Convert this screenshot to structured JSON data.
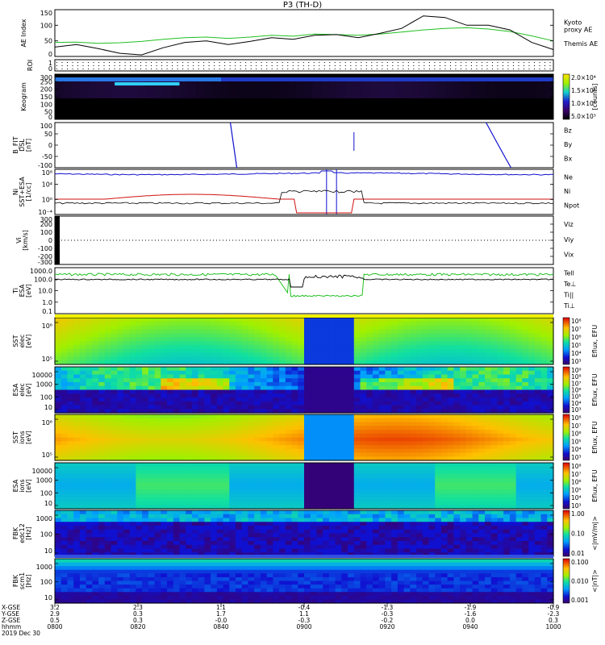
{
  "title": "P3 (TH-D)",
  "colors": {
    "frame": "#000000",
    "red": "#d01010",
    "green": "#20c020",
    "blue": "#1010d0"
  },
  "chart_data": [
    {
      "type": "line",
      "ylabel": "AE Index",
      "ylim": [
        0,
        150
      ],
      "yticks": [
        "150",
        "100",
        "50",
        "0"
      ],
      "legend": [
        {
          "label": "Kyoto\nproxy AE",
          "color": "#20c020"
        },
        {
          "label": "Themis AE",
          "color": "#000000"
        }
      ],
      "series": [
        {
          "name": "Kyoto proxy AE",
          "color": "#20c020",
          "values": [
            45,
            46,
            42,
            44,
            48,
            55,
            60,
            62,
            58,
            62,
            68,
            65,
            72,
            70,
            68,
            72,
            78,
            85,
            90,
            92,
            88,
            80,
            66,
            50
          ]
        },
        {
          "name": "Themis AE",
          "color": "#000000",
          "values": [
            30,
            38,
            25,
            10,
            5,
            28,
            45,
            50,
            38,
            48,
            60,
            55,
            68,
            70,
            60,
            74,
            90,
            130,
            125,
            100,
            100,
            85,
            45,
            22
          ]
        }
      ]
    },
    {
      "type": "heatmap",
      "ylabel": "ROI",
      "ylim": [
        0,
        1
      ],
      "yticks": [
        "1",
        "0"
      ]
    },
    {
      "type": "heatmap",
      "ylabel": "Keogram",
      "ylim": [
        0,
        300
      ],
      "yticks": [
        "300",
        "250",
        "200",
        "150",
        "100",
        "50",
        "0"
      ],
      "colorbar": {
        "label": "[counts]",
        "ticks": [
          "2.0×10⁴",
          "1.5×10⁴",
          "1.0×10⁴",
          "5.0×10³"
        ]
      }
    },
    {
      "type": "line",
      "ylabel": "B_FIT\nDSL\n[nT]",
      "ylim": [
        -100,
        100
      ],
      "yticks": [
        "100",
        "50",
        "0",
        "-50",
        "-100"
      ],
      "legend": [
        {
          "label": "Bz",
          "color": "#d01010"
        },
        {
          "label": "By",
          "color": "#20c020"
        },
        {
          "label": "Bx",
          "color": "#1010d0"
        }
      ]
    },
    {
      "type": "line",
      "ylabel": "Ni\nSST+ESA\n[1/cc]",
      "yticks": [
        "10⁸",
        "10⁴",
        "10⁰",
        "10⁻⁴"
      ],
      "legend": [
        {
          "label": "Ne",
          "color": "#d01010"
        },
        {
          "label": "Ni",
          "color": "#000000"
        },
        {
          "label": "Npot",
          "color": "#1010d0"
        }
      ]
    },
    {
      "type": "line",
      "ylabel": "Vi\n[km/s]",
      "ylim": [
        -300,
        300
      ],
      "yticks": [
        "300",
        "200",
        "100",
        "0",
        "-100",
        "-200",
        "-300"
      ],
      "legend": [
        {
          "label": "Viz",
          "color": "#d01010"
        },
        {
          "label": "Viy",
          "color": "#20c020"
        },
        {
          "label": "Vix",
          "color": "#1010d0"
        }
      ]
    },
    {
      "type": "line",
      "ylabel": "Ti\nESA\n[eV]",
      "yticks": [
        "1000.0",
        "100.0",
        "10.0",
        "1.0",
        "0.1"
      ],
      "legend": [
        {
          "label": "Tell",
          "color": "#000000"
        },
        {
          "label": "Te⊥",
          "color": "#d01010"
        },
        {
          "label": "Ti||",
          "color": "#20c020"
        },
        {
          "label": "Ti⊥",
          "color": "#1010d0"
        }
      ]
    },
    {
      "type": "heatmap",
      "ylabel": "SST\nelec\n[eV]",
      "yticks": [
        "10⁶",
        "10⁵"
      ],
      "colorbar": {
        "label": "Eflux, EFU",
        "ticks": [
          "10⁸",
          "10⁷",
          "10⁶",
          "10⁵",
          "10⁴",
          "10³"
        ]
      }
    },
    {
      "type": "heatmap",
      "ylabel": "ESA\nelec\n[eV]",
      "yticks": [
        "10000",
        "1000",
        "100",
        "10"
      ],
      "colorbar": {
        "label": "Eflux, EFU",
        "ticks": [
          "10⁹",
          "10⁸",
          "10⁷",
          "10⁶",
          "10⁵",
          "10⁴",
          "10³"
        ]
      }
    },
    {
      "type": "heatmap",
      "ylabel": "SST\nions\n[eV]",
      "yticks": [
        "10⁶",
        "10⁵"
      ],
      "colorbar": {
        "label": "Eflux, EFU",
        "ticks": [
          "10⁸",
          "10⁷",
          "10⁶",
          "10⁵",
          "10⁴",
          "10³"
        ]
      }
    },
    {
      "type": "heatmap",
      "ylabel": "ESA\nions\n[eV]",
      "yticks": [
        "10000",
        "1000",
        "100",
        "10"
      ],
      "colorbar": {
        "label": "Eflux, EFU",
        "ticks": [
          "10⁸",
          "10⁷",
          "10⁶",
          "10⁵",
          "10⁴",
          "10³"
        ]
      }
    },
    {
      "type": "heatmap",
      "ylabel": "FBK\nedc12\n[Hz]",
      "yticks": [
        "1000",
        "100",
        "10"
      ],
      "colorbar": {
        "label": "<|mV/m|>",
        "ticks": [
          "1.00",
          "0.10",
          "0.01"
        ]
      }
    },
    {
      "type": "heatmap",
      "ylabel": "FBK\nscm1\n[Hz]",
      "yticks": [
        "1000",
        "100",
        "10"
      ],
      "colorbar": {
        "label": "<|nT|>",
        "ticks": [
          "0.100",
          "0.010",
          "0.001"
        ]
      }
    }
  ],
  "xaxis": {
    "row_labels": [
      "X-GSE",
      "Y-GSE",
      "Z-GSE",
      "hhmm",
      "2019 Dec 30"
    ],
    "columns": [
      [
        "3.2",
        "2.9",
        "0.5",
        "0800"
      ],
      [
        "2.3",
        "0.3",
        "0.3",
        "0820"
      ],
      [
        "1.1",
        "1.7",
        "-0.0",
        "0840"
      ],
      [
        "-0.4",
        "1.1",
        "-0.3",
        "0900"
      ],
      [
        "-1.3",
        "-0.3",
        "-0.2",
        "0920"
      ],
      [
        "-1.9",
        "-1.6",
        "0.0",
        "0940"
      ],
      [
        "-0.9",
        "-2.3",
        "0.3",
        "1000"
      ]
    ]
  }
}
